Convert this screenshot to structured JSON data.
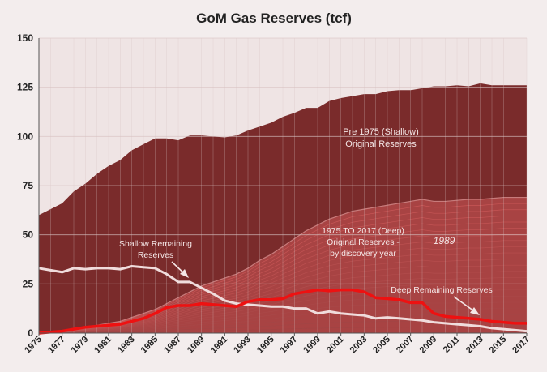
{
  "chart_data": {
    "type": "area",
    "title": "GoM Gas Reserves (tcf)",
    "xlabel": "",
    "ylabel": "",
    "ylim": [
      0,
      150
    ],
    "yticks": [
      0,
      25,
      50,
      75,
      100,
      125,
      150
    ],
    "xticks": [
      "1975",
      "1977",
      "1979",
      "1981",
      "1983",
      "1985",
      "1987",
      "1989",
      "1991",
      "1993",
      "1995",
      "1997",
      "1999",
      "2001",
      "2003",
      "2005",
      "2007",
      "2009",
      "2011",
      "2013",
      "2015",
      "2017"
    ],
    "grid": true,
    "x": [
      1975,
      1976,
      1977,
      1978,
      1979,
      1980,
      1981,
      1982,
      1983,
      1984,
      1985,
      1986,
      1987,
      1988,
      1989,
      1990,
      1991,
      1992,
      1993,
      1994,
      1995,
      1996,
      1997,
      1998,
      1999,
      2000,
      2001,
      2002,
      2003,
      2004,
      2005,
      2006,
      2007,
      2008,
      2009,
      2010,
      2011,
      2012,
      2013,
      2014,
      2015,
      2016,
      2017
    ],
    "series": [
      {
        "name": "Pre 1975 (Shallow) Original Reserves",
        "color": "#7a2b2b",
        "values": [
          60,
          63,
          66,
          72,
          76,
          81,
          85,
          88,
          93,
          96,
          99,
          99,
          98,
          100.5,
          100.5,
          100,
          99.5,
          100.5,
          103,
          105,
          107,
          110,
          112,
          114.5,
          114.5,
          118,
          119.5,
          120.5,
          121.5,
          121.5,
          123,
          123.5,
          123.5,
          124.5,
          125.5,
          125.5,
          126,
          125.5,
          127,
          126,
          126,
          126,
          126
        ]
      },
      {
        "name": "1975 TO 2017 (Deep) Original Reserves - by discovery year",
        "color": "#a84343",
        "values": [
          0,
          0.5,
          1,
          2,
          3,
          4,
          5,
          6,
          8,
          10,
          12,
          15,
          18,
          21,
          24,
          26,
          28,
          30,
          33,
          37,
          40,
          44,
          48,
          52,
          55,
          58,
          60,
          62,
          63,
          64,
          65,
          66,
          67,
          68,
          67,
          67,
          67.5,
          68,
          68,
          68.5,
          69,
          69,
          69
        ]
      },
      {
        "name": "Shallow Remaining Reserves",
        "color": "#f0dcdc",
        "values": [
          33,
          32,
          31,
          33,
          32.5,
          33,
          33,
          32.5,
          34,
          33.5,
          33,
          30,
          26,
          26,
          23,
          20,
          16.5,
          15,
          14.5,
          14,
          13.5,
          13.5,
          12.5,
          12.5,
          10,
          11,
          10,
          9.5,
          9,
          7.5,
          8,
          7.5,
          7,
          6.5,
          5.5,
          5,
          4.5,
          4,
          3.5,
          2.5,
          2,
          1.5,
          1
        ]
      },
      {
        "name": "Deep Remaining Reserves",
        "color": "#ee1111",
        "values": [
          0,
          0.5,
          1,
          2,
          3,
          3.5,
          4,
          4.5,
          6,
          7.5,
          10,
          13,
          14,
          14,
          15,
          14.5,
          14,
          13.5,
          16,
          17,
          17,
          17.5,
          20,
          21,
          22,
          21.5,
          22,
          22,
          21,
          18,
          17.5,
          17,
          15.5,
          15.5,
          10,
          8.5,
          8,
          7.5,
          7,
          6,
          5.5,
          5,
          5
        ]
      }
    ],
    "annotations": {
      "pre1975_line1": "Pre 1975 (Shallow)",
      "pre1975_line2": "Original Reserves",
      "deep_line1": "1975 TO 2017 (Deep)",
      "deep_line2": "Original Reserves -",
      "deep_line3": "by discovery year",
      "year_label": "1989",
      "shallow_rem_line1": "Shallow Remaining",
      "shallow_rem_line2": "Reserves",
      "deep_rem": "Deep Remaining Reserves"
    }
  }
}
